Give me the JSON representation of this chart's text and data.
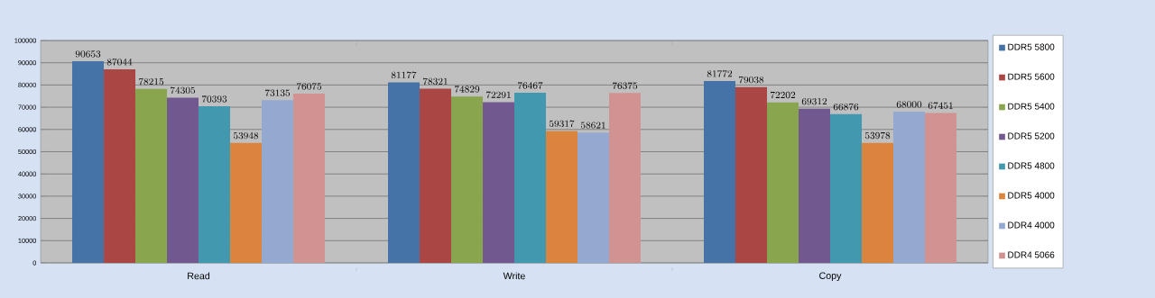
{
  "chart_data": {
    "type": "bar",
    "categories": [
      "Read",
      "Write",
      "Copy"
    ],
    "series": [
      {
        "name": "DDR5 5800",
        "color": "#4572a7",
        "values": [
          90653,
          81177,
          81772
        ]
      },
      {
        "name": "DDR5 5600",
        "color": "#aa4643",
        "values": [
          87044,
          78321,
          79038
        ]
      },
      {
        "name": "DDR5 5400",
        "color": "#89a54e",
        "values": [
          78215,
          74829,
          72202
        ]
      },
      {
        "name": "DDR5 5200",
        "color": "#71588f",
        "values": [
          74305,
          72291,
          69312
        ]
      },
      {
        "name": "DDR5 4800",
        "color": "#4198af",
        "values": [
          70393,
          76467,
          66876
        ]
      },
      {
        "name": "DDR5 4000",
        "color": "#db843d",
        "values": [
          53948,
          59317,
          53978
        ]
      },
      {
        "name": "DDR4 4000",
        "color": "#93a9cf",
        "values": [
          73135,
          58621,
          68000
        ]
      },
      {
        "name": "DDR4 5066",
        "color": "#d19392",
        "values": [
          76075,
          76375,
          67451
        ]
      }
    ],
    "ylim": [
      0,
      100000
    ],
    "yticks": [
      0,
      10000,
      20000,
      30000,
      40000,
      50000,
      60000,
      70000,
      80000,
      90000,
      100000
    ],
    "grid": "y",
    "legend": "right",
    "data_labels": true
  }
}
